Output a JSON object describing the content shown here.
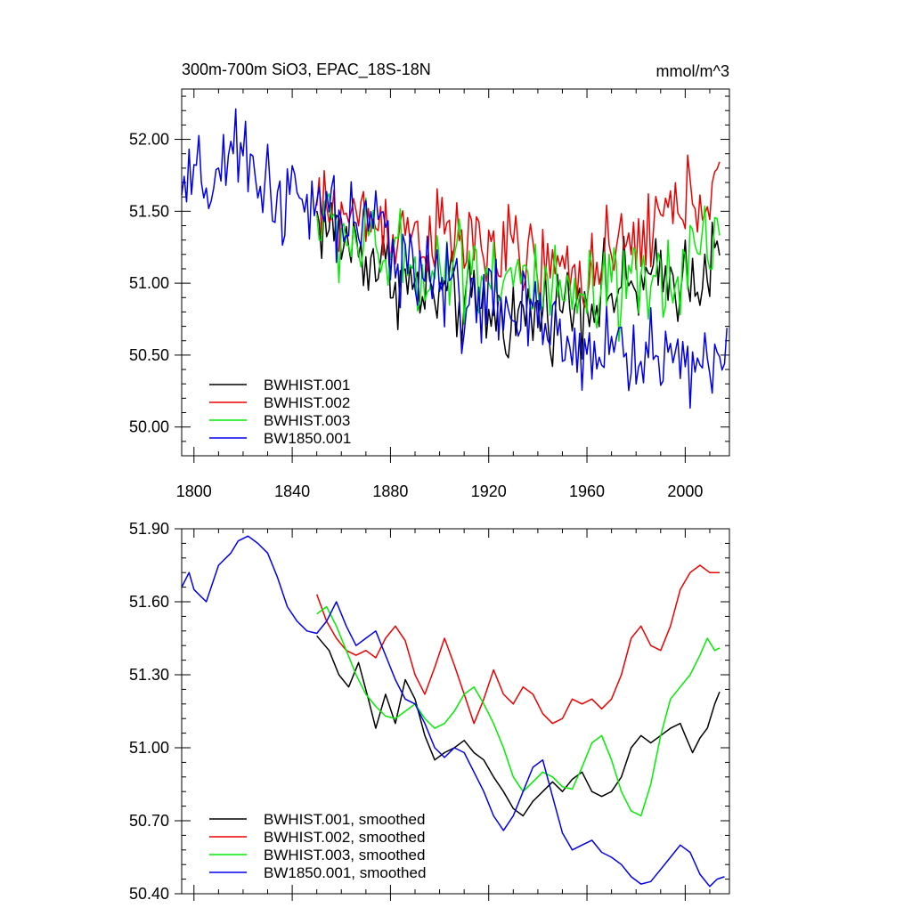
{
  "colors": {
    "BWHIST.001": "#000000",
    "BWHIST.002": "#ee0000",
    "BWHIST.003": "#00ee00",
    "BW1850.001": "#0000ee"
  },
  "chart_data": [
    {
      "type": "line",
      "title": "300m-700m SiO3, EPAC_18S-18N",
      "units": "mmol/m^3",
      "xlim": [
        1795,
        2018
      ],
      "ylim": [
        49.8,
        52.35
      ],
      "xticks": [
        1800,
        1840,
        1880,
        1920,
        1960,
        2000
      ],
      "yticks": [
        50.0,
        50.5,
        51.0,
        51.5,
        52.0
      ],
      "ytick_labels": [
        "50.00",
        "50.50",
        "51.00",
        "51.50",
        "52.00"
      ],
      "xlabel": "",
      "ylabel": "",
      "grid": false,
      "legend_position": "bottom-left",
      "series": [
        {
          "name": "BWHIST.001",
          "start": 1850,
          "end": 2014,
          "anchors": [
            [
              1850,
              51.45
            ],
            [
              1870,
              51.2
            ],
            [
              1890,
              50.95
            ],
            [
              1910,
              50.85
            ],
            [
              1930,
              50.75
            ],
            [
              1950,
              50.85
            ],
            [
              1970,
              50.95
            ],
            [
              1990,
              51.0
            ],
            [
              2014,
              51.15
            ]
          ],
          "noise": 0.22
        },
        {
          "name": "BWHIST.002",
          "start": 1850,
          "end": 2014,
          "anchors": [
            [
              1850,
              51.5
            ],
            [
              1870,
              51.45
            ],
            [
              1890,
              51.35
            ],
            [
              1910,
              51.3
            ],
            [
              1930,
              51.2
            ],
            [
              1950,
              51.05
            ],
            [
              1970,
              51.15
            ],
            [
              1990,
              51.45
            ],
            [
              2014,
              51.7
            ]
          ],
          "noise": 0.22
        },
        {
          "name": "BWHIST.003",
          "start": 1850,
          "end": 2014,
          "anchors": [
            [
              1850,
              51.45
            ],
            [
              1870,
              51.25
            ],
            [
              1890,
              51.1
            ],
            [
              1910,
              51.15
            ],
            [
              1930,
              51.05
            ],
            [
              1950,
              50.85
            ],
            [
              1970,
              50.9
            ],
            [
              1990,
              51.0
            ],
            [
              2014,
              51.4
            ]
          ],
          "noise": 0.24
        },
        {
          "name": "BW1850.001",
          "start": 1795,
          "end": 2017,
          "anchors": [
            [
              1795,
              51.6
            ],
            [
              1820,
              51.85
            ],
            [
              1840,
              51.55
            ],
            [
              1860,
              51.45
            ],
            [
              1880,
              51.3
            ],
            [
              1900,
              51.0
            ],
            [
              1920,
              50.85
            ],
            [
              1935,
              50.75
            ],
            [
              1950,
              50.6
            ],
            [
              1980,
              50.5
            ],
            [
              2017,
              50.45
            ]
          ],
          "noise": 0.24
        }
      ]
    },
    {
      "type": "line",
      "title": "",
      "xlim": [
        1795,
        2018
      ],
      "ylim": [
        50.4,
        51.9
      ],
      "xticks": [
        1800,
        1840,
        1880,
        1920,
        1960,
        2000
      ],
      "yticks": [
        50.4,
        50.7,
        51.0,
        51.3,
        51.6,
        51.9
      ],
      "ytick_labels": [
        "50.40",
        "50.70",
        "51.00",
        "51.30",
        "51.60",
        "51.90"
      ],
      "xlabel": "",
      "ylabel": "",
      "grid": false,
      "legend_position": "bottom-left",
      "series": [
        {
          "name": "BWHIST.001, smoothed",
          "key": "BWHIST.001",
          "points": [
            [
              1850,
              51.46
            ],
            [
              1855,
              51.4
            ],
            [
              1859,
              51.3
            ],
            [
              1863,
              51.25
            ],
            [
              1867,
              51.35
            ],
            [
              1871,
              51.2
            ],
            [
              1874,
              51.08
            ],
            [
              1878,
              51.22
            ],
            [
              1882,
              51.1
            ],
            [
              1886,
              51.28
            ],
            [
              1890,
              51.2
            ],
            [
              1894,
              51.05
            ],
            [
              1898,
              50.95
            ],
            [
              1902,
              50.98
            ],
            [
              1906,
              51.0
            ],
            [
              1910,
              51.03
            ],
            [
              1914,
              50.98
            ],
            [
              1918,
              50.95
            ],
            [
              1922,
              50.88
            ],
            [
              1926,
              50.82
            ],
            [
              1930,
              50.75
            ],
            [
              1934,
              50.72
            ],
            [
              1938,
              50.78
            ],
            [
              1942,
              50.82
            ],
            [
              1946,
              50.86
            ],
            [
              1950,
              50.82
            ],
            [
              1954,
              50.87
            ],
            [
              1958,
              50.9
            ],
            [
              1962,
              50.82
            ],
            [
              1966,
              50.8
            ],
            [
              1970,
              50.82
            ],
            [
              1974,
              50.88
            ],
            [
              1978,
              51.0
            ],
            [
              1982,
              51.05
            ],
            [
              1986,
              51.02
            ],
            [
              1990,
              51.05
            ],
            [
              1994,
              51.08
            ],
            [
              1998,
              51.1
            ],
            [
              2000,
              51.05
            ],
            [
              2003,
              50.98
            ],
            [
              2006,
              51.04
            ],
            [
              2009,
              51.08
            ],
            [
              2012,
              51.18
            ],
            [
              2014,
              51.23
            ]
          ]
        },
        {
          "name": "BWHIST.002, smoothed",
          "key": "BWHIST.002",
          "points": [
            [
              1850,
              51.63
            ],
            [
              1854,
              51.52
            ],
            [
              1858,
              51.45
            ],
            [
              1862,
              51.4
            ],
            [
              1866,
              51.38
            ],
            [
              1870,
              51.4
            ],
            [
              1874,
              51.37
            ],
            [
              1878,
              51.45
            ],
            [
              1882,
              51.5
            ],
            [
              1886,
              51.44
            ],
            [
              1890,
              51.3
            ],
            [
              1894,
              51.22
            ],
            [
              1898,
              51.33
            ],
            [
              1902,
              51.45
            ],
            [
              1906,
              51.34
            ],
            [
              1910,
              51.22
            ],
            [
              1914,
              51.1
            ],
            [
              1918,
              51.2
            ],
            [
              1922,
              51.32
            ],
            [
              1926,
              51.22
            ],
            [
              1930,
              51.18
            ],
            [
              1934,
              51.25
            ],
            [
              1938,
              51.22
            ],
            [
              1942,
              51.14
            ],
            [
              1946,
              51.1
            ],
            [
              1950,
              51.12
            ],
            [
              1954,
              51.2
            ],
            [
              1958,
              51.18
            ],
            [
              1962,
              51.2
            ],
            [
              1966,
              51.16
            ],
            [
              1970,
              51.2
            ],
            [
              1974,
              51.3
            ],
            [
              1978,
              51.45
            ],
            [
              1982,
              51.5
            ],
            [
              1986,
              51.42
            ],
            [
              1990,
              51.4
            ],
            [
              1994,
              51.5
            ],
            [
              1998,
              51.65
            ],
            [
              2002,
              51.72
            ],
            [
              2006,
              51.75
            ],
            [
              2010,
              51.72
            ],
            [
              2014,
              51.72
            ]
          ]
        },
        {
          "name": "BWHIST.003, smoothed",
          "key": "BWHIST.003",
          "points": [
            [
              1850,
              51.55
            ],
            [
              1854,
              51.58
            ],
            [
              1858,
              51.5
            ],
            [
              1862,
              51.4
            ],
            [
              1866,
              51.3
            ],
            [
              1870,
              51.22
            ],
            [
              1874,
              51.17
            ],
            [
              1878,
              51.13
            ],
            [
              1882,
              51.12
            ],
            [
              1886,
              51.15
            ],
            [
              1890,
              51.18
            ],
            [
              1894,
              51.12
            ],
            [
              1898,
              51.08
            ],
            [
              1902,
              51.1
            ],
            [
              1906,
              51.15
            ],
            [
              1910,
              51.22
            ],
            [
              1914,
              51.25
            ],
            [
              1918,
              51.18
            ],
            [
              1922,
              51.1
            ],
            [
              1926,
              51.0
            ],
            [
              1930,
              50.88
            ],
            [
              1934,
              50.82
            ],
            [
              1938,
              50.86
            ],
            [
              1942,
              50.9
            ],
            [
              1946,
              50.88
            ],
            [
              1950,
              50.84
            ],
            [
              1954,
              50.83
            ],
            [
              1958,
              50.92
            ],
            [
              1962,
              51.02
            ],
            [
              1966,
              51.05
            ],
            [
              1970,
              50.95
            ],
            [
              1974,
              50.82
            ],
            [
              1978,
              50.74
            ],
            [
              1982,
              50.72
            ],
            [
              1986,
              50.85
            ],
            [
              1990,
              51.05
            ],
            [
              1994,
              51.2
            ],
            [
              1998,
              51.25
            ],
            [
              2002,
              51.3
            ],
            [
              2006,
              51.38
            ],
            [
              2009,
              51.45
            ],
            [
              2012,
              51.4
            ],
            [
              2014,
              51.41
            ]
          ]
        },
        {
          "name": "BW1850.001, smoothed",
          "key": "BW1850.001",
          "points": [
            [
              1795,
              51.66
            ],
            [
              1798,
              51.72
            ],
            [
              1800,
              51.65
            ],
            [
              1805,
              51.6
            ],
            [
              1810,
              51.75
            ],
            [
              1815,
              51.8
            ],
            [
              1818,
              51.85
            ],
            [
              1822,
              51.87
            ],
            [
              1826,
              51.84
            ],
            [
              1830,
              51.8
            ],
            [
              1834,
              51.7
            ],
            [
              1838,
              51.58
            ],
            [
              1842,
              51.52
            ],
            [
              1846,
              51.48
            ],
            [
              1850,
              51.47
            ],
            [
              1854,
              51.52
            ],
            [
              1858,
              51.6
            ],
            [
              1862,
              51.5
            ],
            [
              1866,
              51.42
            ],
            [
              1870,
              51.45
            ],
            [
              1874,
              51.48
            ],
            [
              1878,
              51.38
            ],
            [
              1882,
              51.28
            ],
            [
              1886,
              51.2
            ],
            [
              1890,
              51.18
            ],
            [
              1894,
              51.1
            ],
            [
              1898,
              51.0
            ],
            [
              1902,
              50.96
            ],
            [
              1906,
              51.0
            ],
            [
              1910,
              50.98
            ],
            [
              1914,
              50.9
            ],
            [
              1918,
              50.82
            ],
            [
              1922,
              50.72
            ],
            [
              1926,
              50.66
            ],
            [
              1930,
              50.72
            ],
            [
              1934,
              50.82
            ],
            [
              1938,
              50.92
            ],
            [
              1942,
              50.95
            ],
            [
              1946,
              50.8
            ],
            [
              1950,
              50.65
            ],
            [
              1954,
              50.58
            ],
            [
              1958,
              50.6
            ],
            [
              1962,
              50.62
            ],
            [
              1966,
              50.57
            ],
            [
              1970,
              50.55
            ],
            [
              1974,
              50.52
            ],
            [
              1978,
              50.47
            ],
            [
              1982,
              50.44
            ],
            [
              1986,
              50.45
            ],
            [
              1990,
              50.5
            ],
            [
              1994,
              50.55
            ],
            [
              1998,
              50.6
            ],
            [
              2002,
              50.57
            ],
            [
              2006,
              50.48
            ],
            [
              2010,
              50.43
            ],
            [
              2013,
              50.46
            ],
            [
              2016,
              50.47
            ]
          ]
        }
      ]
    }
  ]
}
